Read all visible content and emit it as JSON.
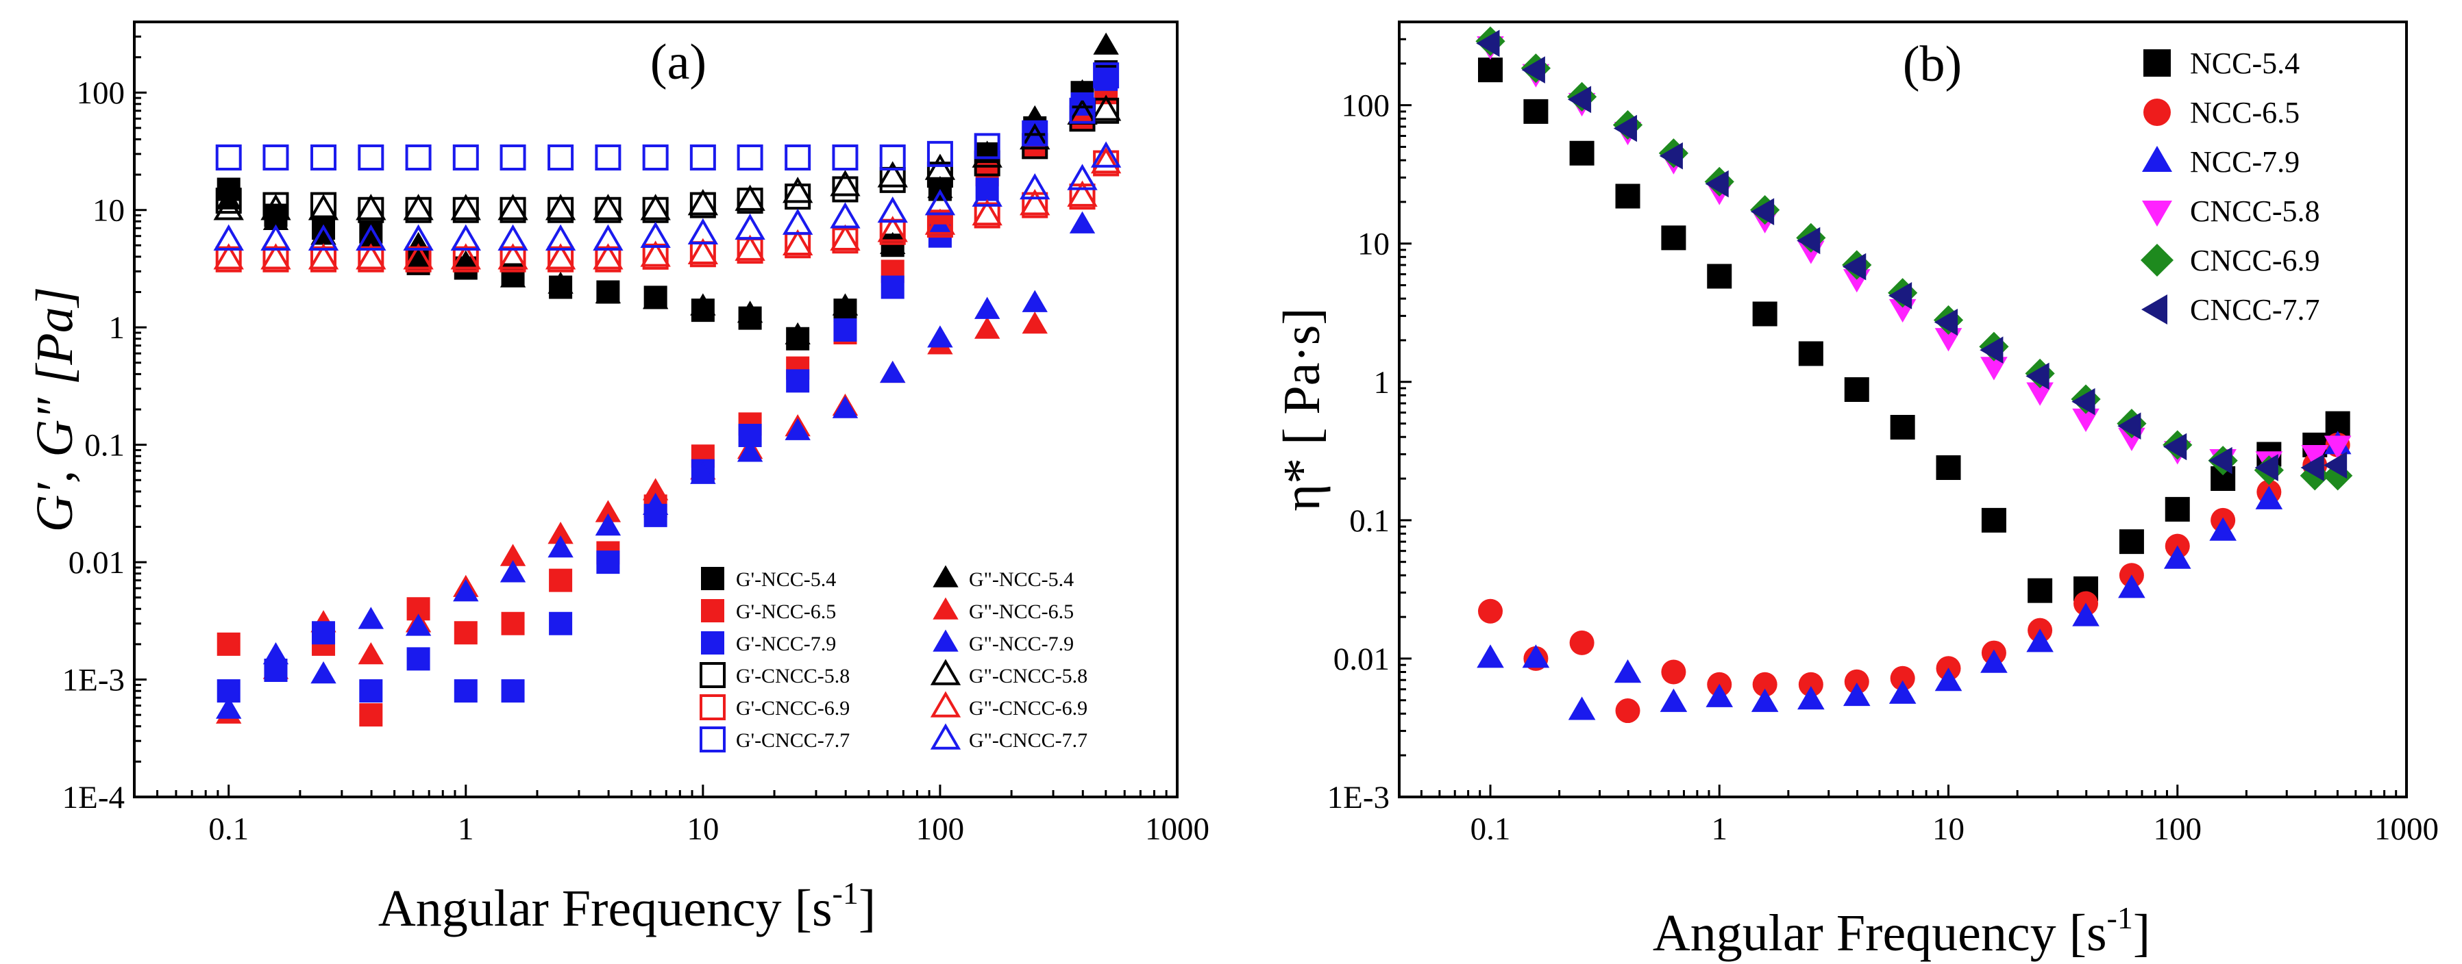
{
  "chart_data": [
    {
      "type": "scatter",
      "panel_label": "(a)",
      "xlabel": "Angular Frequency [s",
      "xlabel_sup": "-1",
      "xlabel_end": "]",
      "ylabel": "G′, G″ [Pa]",
      "xscale": "log",
      "yscale": "log",
      "xlim": [
        0.04,
        1000
      ],
      "ylim": [
        0.0001,
        400
      ],
      "xticks": [
        0.1,
        1,
        10,
        100,
        1000
      ],
      "xtick_labels": [
        "0.1",
        "1",
        "10",
        "100",
        "1000"
      ],
      "yticks": [
        0.0001,
        0.001,
        0.01,
        0.1,
        1,
        10,
        100
      ],
      "ytick_labels": [
        "1E-4",
        "1E-3",
        "0.01",
        "0.1",
        "1",
        "10",
        "100"
      ],
      "legend_position": "bottom-right",
      "x": [
        0.1,
        0.158,
        0.251,
        0.398,
        0.631,
        1,
        1.58,
        2.51,
        3.98,
        6.31,
        10,
        15.8,
        25.1,
        39.8,
        63.1,
        100,
        158,
        251,
        398,
        501
      ],
      "series": [
        {
          "name": "G'-NCC-5.4",
          "marker": "square",
          "color": "#000000",
          "filled": true,
          "values": [
            15,
            9,
            7,
            6.5,
            3.5,
            3.2,
            2.8,
            2.2,
            2,
            1.8,
            1.4,
            1.2,
            0.8,
            1.4,
            5,
            15,
            30,
            50,
            100,
            150
          ]
        },
        {
          "name": "G\"-NCC-5.4",
          "marker": "triangle-up",
          "color": "#000000",
          "filled": true,
          "values": [
            12,
            8,
            6,
            5.5,
            5,
            3.5,
            2.6,
            2.3,
            1.9,
            1.7,
            1.5,
            1.3,
            0.85,
            1.5,
            5,
            15,
            30,
            60,
            100,
            250
          ]
        },
        {
          "name": "G'-NCC-6.5",
          "marker": "square",
          "color": "#ee1c1c",
          "filled": true,
          "values": [
            0.002,
            0.0012,
            0.002,
            0.0005,
            0.004,
            0.0025,
            0.003,
            0.007,
            0.012,
            0.03,
            0.08,
            0.15,
            0.45,
            0.9,
            3,
            8,
            20,
            35,
            60,
            100
          ]
        },
        {
          "name": "G\"-NCC-6.5",
          "marker": "triangle-up",
          "color": "#ee1c1c",
          "filled": true,
          "values": [
            0.0005,
            0.0012,
            0.003,
            0.0016,
            0.003,
            0.006,
            0.011,
            0.017,
            0.026,
            0.04,
            0.06,
            0.09,
            0.14,
            0.21,
            0.4,
            0.7,
            0.95,
            1.05,
            null,
            null
          ]
        },
        {
          "name": "G'-NCC-7.9",
          "marker": "square",
          "color": "#1a1aee",
          "filled": true,
          "values": [
            0.0008,
            0.0012,
            0.0025,
            0.0008,
            0.0015,
            0.0008,
            0.0008,
            0.003,
            0.01,
            0.025,
            0.06,
            0.12,
            0.35,
            0.95,
            2.2,
            6,
            15,
            45,
            80,
            130
          ]
        },
        {
          "name": "G\"-NCC-7.9",
          "marker": "triangle-up",
          "color": "#1a1aee",
          "filled": true,
          "values": [
            0.00055,
            0.0016,
            0.0011,
            0.0032,
            0.0028,
            0.0055,
            0.008,
            0.013,
            0.02,
            0.03,
            0.055,
            0.085,
            0.13,
            0.2,
            0.4,
            0.8,
            1.4,
            1.6,
            7.5,
            null
          ]
        },
        {
          "name": "G'-CNCC-5.8",
          "marker": "square",
          "color": "#000000",
          "filled": false,
          "values": [
            12,
            11,
            11,
            10,
            10,
            10,
            10,
            10,
            10,
            10,
            11,
            12,
            13,
            15,
            18,
            20,
            25,
            35,
            60,
            70
          ]
        },
        {
          "name": "G\"-CNCC-5.8",
          "marker": "triangle-up",
          "color": "#000000",
          "filled": false,
          "values": [
            10,
            10,
            10,
            10,
            10,
            10,
            10,
            10,
            10,
            10,
            11,
            12,
            14,
            16,
            19,
            22,
            28,
            40,
            65,
            70
          ]
        },
        {
          "name": "G'-CNCC-6.9",
          "marker": "square",
          "color": "#ee1c1c",
          "filled": false,
          "values": [
            3.8,
            3.8,
            3.8,
            3.8,
            3.8,
            3.8,
            3.8,
            3.8,
            3.8,
            4,
            4.2,
            4.5,
            5,
            5.5,
            6.5,
            7.5,
            9,
            11,
            13,
            25
          ]
        },
        {
          "name": "G\"-CNCC-6.9",
          "marker": "triangle-up",
          "color": "#ee1c1c",
          "filled": false,
          "values": [
            3.8,
            3.8,
            3.8,
            3.8,
            3.8,
            3.8,
            3.8,
            3.8,
            3.8,
            4,
            4.2,
            4.5,
            5,
            5.5,
            6.5,
            7.5,
            9,
            11,
            13,
            25
          ]
        },
        {
          "name": "G'-CNCC-7.7",
          "marker": "square",
          "color": "#1a1aee",
          "filled": false,
          "values": [
            28,
            28,
            28,
            28,
            28,
            28,
            28,
            28,
            28,
            28,
            28,
            28,
            28,
            28,
            28,
            30,
            35,
            45,
            70,
            140
          ]
        },
        {
          "name": "G\"-CNCC-7.7",
          "marker": "triangle-up",
          "color": "#1a1aee",
          "filled": false,
          "values": [
            5.5,
            5.5,
            5.5,
            5.5,
            5.5,
            5.5,
            5.5,
            5.5,
            5.5,
            5.8,
            6.2,
            6.8,
            7.5,
            8.5,
            9.5,
            11,
            13,
            15,
            18,
            28
          ]
        }
      ]
    },
    {
      "type": "scatter",
      "panel_label": "(b)",
      "xlabel": "Angular Frequency [s",
      "xlabel_sup": "-1",
      "xlabel_end": "]",
      "ylabel": "η* [ Pa·s]",
      "xscale": "log",
      "yscale": "log",
      "xlim": [
        0.04,
        1000
      ],
      "ylim": [
        0.001,
        400
      ],
      "xticks": [
        0.1,
        1,
        10,
        100,
        1000
      ],
      "xtick_labels": [
        "0.1",
        "1",
        "10",
        "100",
        "1000"
      ],
      "yticks": [
        0.001,
        0.01,
        0.1,
        1,
        10,
        100
      ],
      "ytick_labels": [
        "1E-3",
        "0.01",
        "0.1",
        "1",
        "10",
        "100"
      ],
      "legend_position": "top-right",
      "x": [
        0.1,
        0.158,
        0.251,
        0.398,
        0.631,
        1,
        1.58,
        2.51,
        3.98,
        6.31,
        10,
        15.8,
        25.1,
        39.8,
        63.1,
        100,
        158,
        251,
        398,
        501
      ],
      "series": [
        {
          "name": "NCC-5.4",
          "marker": "square",
          "color": "#000000",
          "values": [
            180,
            90,
            45,
            22,
            11,
            5.8,
            3.1,
            1.6,
            0.88,
            0.47,
            0.24,
            0.1,
            0.031,
            0.032,
            0.07,
            0.12,
            0.2,
            0.3,
            0.35,
            0.5
          ]
        },
        {
          "name": "NCC-6.5",
          "marker": "circle",
          "color": "#ee1c1c",
          "values": [
            0.022,
            0.01,
            0.013,
            0.0042,
            0.008,
            0.0065,
            0.0065,
            0.0065,
            0.0068,
            0.0072,
            0.0085,
            0.011,
            0.016,
            0.025,
            0.04,
            0.065,
            0.1,
            0.16,
            0.25,
            0.35
          ]
        },
        {
          "name": "NCC-7.9",
          "marker": "triangle-up",
          "color": "#1a1aee",
          "values": [
            0.01,
            0.01,
            0.0042,
            0.0078,
            0.0048,
            0.0052,
            0.0048,
            0.005,
            0.0053,
            0.0055,
            0.0068,
            0.0092,
            0.013,
            0.02,
            0.032,
            0.052,
            0.083,
            0.14,
            0.24,
            0.35
          ]
        },
        {
          "name": "CNCC-5.8",
          "marker": "triangle-down",
          "color": "#ff22ff",
          "values": [
            270,
            170,
            105,
            65,
            40,
            24,
            15,
            9,
            5.6,
            3.4,
            2.1,
            1.3,
            0.85,
            0.55,
            0.4,
            0.32,
            0.28,
            0.27,
            0.3,
            0.35
          ]
        },
        {
          "name": "CNCC-6.9",
          "marker": "diamond",
          "color": "#1e8a1e",
          "values": [
            290,
            185,
            115,
            72,
            45,
            28,
            17.5,
            11,
            7,
            4.4,
            2.8,
            1.8,
            1.15,
            0.75,
            0.5,
            0.35,
            0.27,
            0.23,
            0.21,
            0.21
          ]
        },
        {
          "name": "CNCC-7.7",
          "marker": "triangle-left",
          "color": "#1a1a80",
          "values": [
            280,
            180,
            110,
            68,
            43,
            27,
            17,
            10.5,
            6.8,
            4.2,
            2.7,
            1.7,
            1.1,
            0.72,
            0.48,
            0.34,
            0.27,
            0.24,
            0.24,
            0.25
          ]
        }
      ]
    }
  ]
}
